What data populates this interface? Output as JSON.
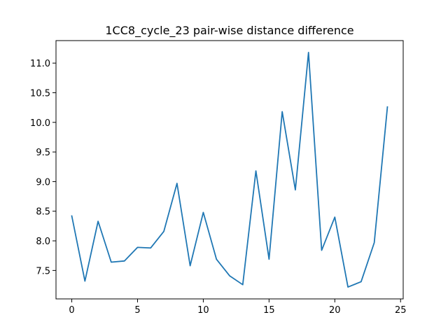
{
  "chart_data": {
    "type": "line",
    "title": "1CC8_cycle_23 pair-wise distance difference",
    "xlabel": "",
    "ylabel": "",
    "xlim": [
      -1.2,
      25.2
    ],
    "ylim": [
      7.02,
      11.38
    ],
    "x_ticks": [
      0,
      5,
      10,
      15,
      20,
      25
    ],
    "y_ticks": [
      7.5,
      8.0,
      8.5,
      9.0,
      9.5,
      10.0,
      10.5,
      11.0
    ],
    "x_tick_labels": [
      "0",
      "5",
      "10",
      "15",
      "20",
      "25"
    ],
    "y_tick_labels": [
      "7.5",
      "8.0",
      "8.5",
      "9.0",
      "9.5",
      "10.0",
      "10.5",
      "11.0"
    ],
    "grid": false,
    "series": [
      {
        "color": "#1f77b4",
        "x": [
          0,
          1,
          2,
          3,
          4,
          5,
          6,
          7,
          8,
          9,
          10,
          11,
          12,
          13,
          14,
          15,
          16,
          17,
          18,
          19,
          20,
          21,
          22,
          23,
          24
        ],
        "values": [
          8.42,
          7.32,
          8.33,
          7.64,
          7.66,
          7.89,
          7.88,
          8.16,
          8.97,
          7.58,
          8.48,
          7.69,
          7.41,
          7.26,
          9.18,
          7.69,
          10.18,
          8.86,
          11.18,
          7.84,
          8.4,
          7.22,
          7.31,
          7.97,
          10.26
        ]
      }
    ]
  }
}
